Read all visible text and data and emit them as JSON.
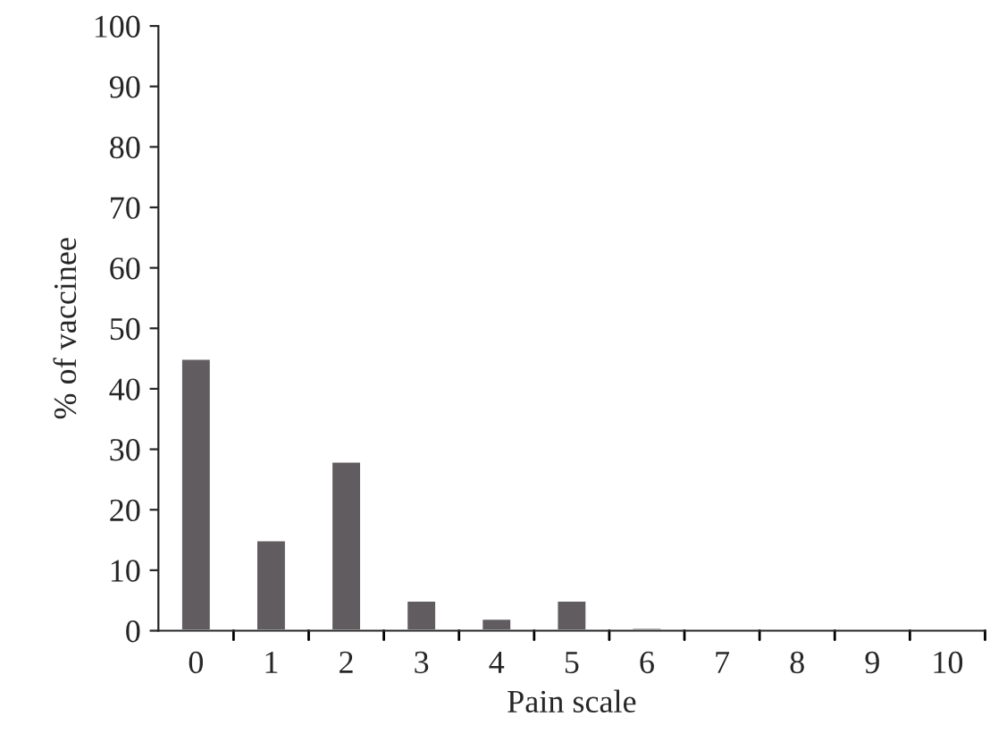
{
  "chart_data": {
    "type": "bar",
    "xlabel": "Pain scale",
    "ylabel": "% of vaccinee",
    "categories": [
      "0",
      "1",
      "2",
      "3",
      "4",
      "5",
      "6",
      "7",
      "8",
      "9",
      "10"
    ],
    "values": [
      45,
      15,
      28,
      5,
      2,
      5,
      0.5,
      null,
      null,
      null,
      null
    ],
    "color": "#605c60",
    "ylim": [
      0,
      100
    ],
    "yticks": [
      0,
      10,
      20,
      30,
      40,
      50,
      60,
      70,
      80,
      90,
      100
    ],
    "grid": false,
    "legend": false
  }
}
